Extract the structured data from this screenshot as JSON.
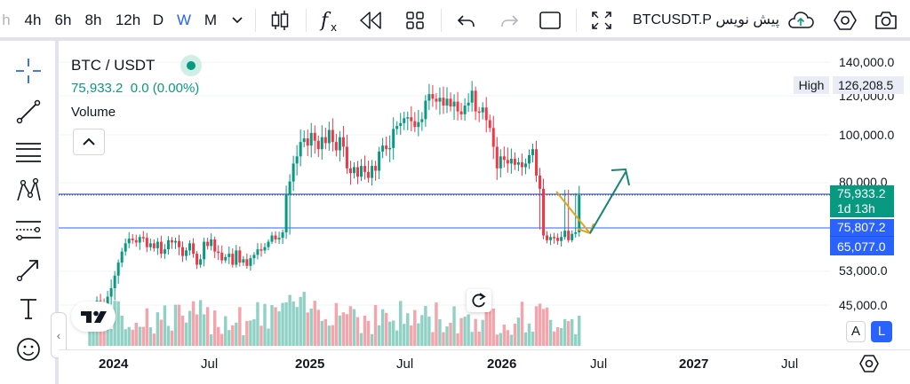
{
  "toolbar": {
    "intervals": [
      "h",
      "4h",
      "6h",
      "8h",
      "12h",
      "D",
      "W",
      "M"
    ],
    "active_interval": "W",
    "symbol_label": "پیش نویس BTCUSDT.P"
  },
  "legend": {
    "title": "BTC / USDT",
    "price": "75,933.2",
    "change": "0.0 (0.00%)",
    "volume_label": "Volume"
  },
  "price_axis": {
    "labels": [
      "140,000.0",
      "120,000.0",
      "100,000.0",
      "80,000.0",
      "53,000.0",
      "45,000.0"
    ],
    "high_label": "High",
    "high_value": "126,208.5",
    "last_price": "75,933.2",
    "countdown": "1d 13h",
    "level_1": "75,807.2",
    "level_2": "65,077.0",
    "auto_button": "A",
    "log_button": "L"
  },
  "time_axis": {
    "labels": [
      "2024",
      "Jul",
      "2025",
      "Jul",
      "2026",
      "Jul",
      "2027",
      "Jul"
    ],
    "bold": [
      true,
      false,
      true,
      false,
      true,
      false,
      true,
      false
    ]
  },
  "colors": {
    "up": "#089981",
    "down": "#f23645",
    "vol_up": "#8fd1c4",
    "vol_down": "#f4a4aa",
    "line": "#2962ff",
    "arrow_down": "#e2a516",
    "arrow_up": "#17866f"
  },
  "chart_data": {
    "type": "candlestick",
    "symbol": "BTC / USDT",
    "interval": "W",
    "last_price": 75933.2,
    "high": 126208.5,
    "horizontal_lines": [
      75807.2,
      65077.0
    ],
    "closes": [
      42000,
      43500,
      46000,
      44500,
      43000,
      47000,
      49000,
      52000,
      57000,
      62000,
      66000,
      69000,
      68000,
      66500,
      70000,
      69500,
      64000,
      66000,
      63500,
      67000,
      61000,
      63000,
      68000,
      66500,
      67500,
      64000,
      60000,
      62500,
      66000,
      61000,
      56000,
      58500,
      67000,
      64500,
      68500,
      62000,
      61500,
      58000,
      59500,
      61000,
      56000,
      62500,
      57000,
      58500,
      55500,
      59000,
      60500,
      63000,
      62500,
      64000,
      67000,
      71000,
      68500,
      69500,
      73000,
      76000,
      80500,
      88000,
      91000,
      97000,
      98500,
      95500,
      101000,
      97500,
      94000,
      99000,
      96500,
      102500,
      97000,
      93500,
      99000,
      95000,
      86000,
      84000,
      86500,
      82500,
      87000,
      84500,
      82000,
      87000,
      85000,
      93000,
      95500,
      94000,
      94500,
      103000,
      104500,
      106000,
      108500,
      109000,
      107000,
      104000,
      106500,
      108000,
      117500,
      121000,
      118500,
      117000,
      119000,
      115000,
      118500,
      114500,
      117000,
      112000,
      110500,
      115000,
      116500,
      123000,
      112000,
      111500,
      114000,
      107500,
      103500,
      95000,
      86000,
      91000,
      89500,
      88000,
      90000,
      87500,
      88500,
      86500,
      88000,
      91500,
      94000,
      83000,
      78000,
      71000,
      68000,
      70000,
      69500,
      67500,
      70000,
      74000,
      68000,
      72000,
      73000,
      75933
    ]
  }
}
